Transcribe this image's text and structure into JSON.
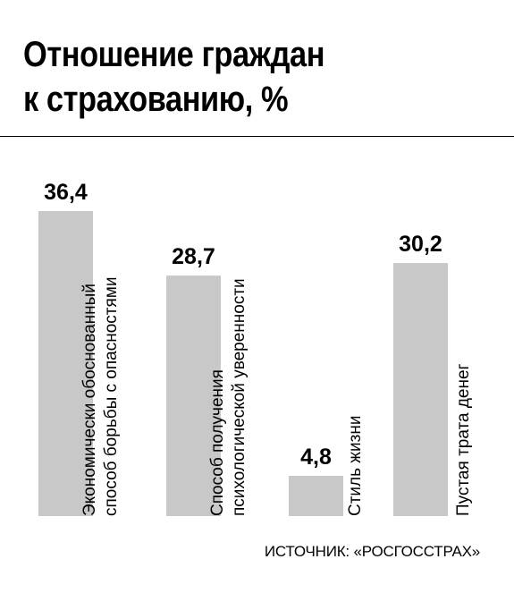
{
  "chart_data": {
    "type": "bar",
    "title": "Отношение граждан к страхованию, %",
    "title_lines": [
      "Отношение граждан",
      "к страхованию, %"
    ],
    "categories": [
      [
        "Экономически обоснованный",
        "способ борьбы с опасностями"
      ],
      [
        "Способ получения",
        "психологической уверенности"
      ],
      [
        "Стиль жизни"
      ],
      [
        "Пустая трата денег"
      ]
    ],
    "values": [
      36.4,
      28.7,
      4.8,
      30.2
    ],
    "value_labels": [
      "36,4",
      "28,7",
      "4,8",
      "30,2"
    ],
    "ylim": [
      0,
      36.4
    ],
    "grid": false,
    "legend": "none",
    "bar_color": "#c8c8c8",
    "source": "ИСТОЧНИК: «РОСГОССТРАХ»"
  }
}
